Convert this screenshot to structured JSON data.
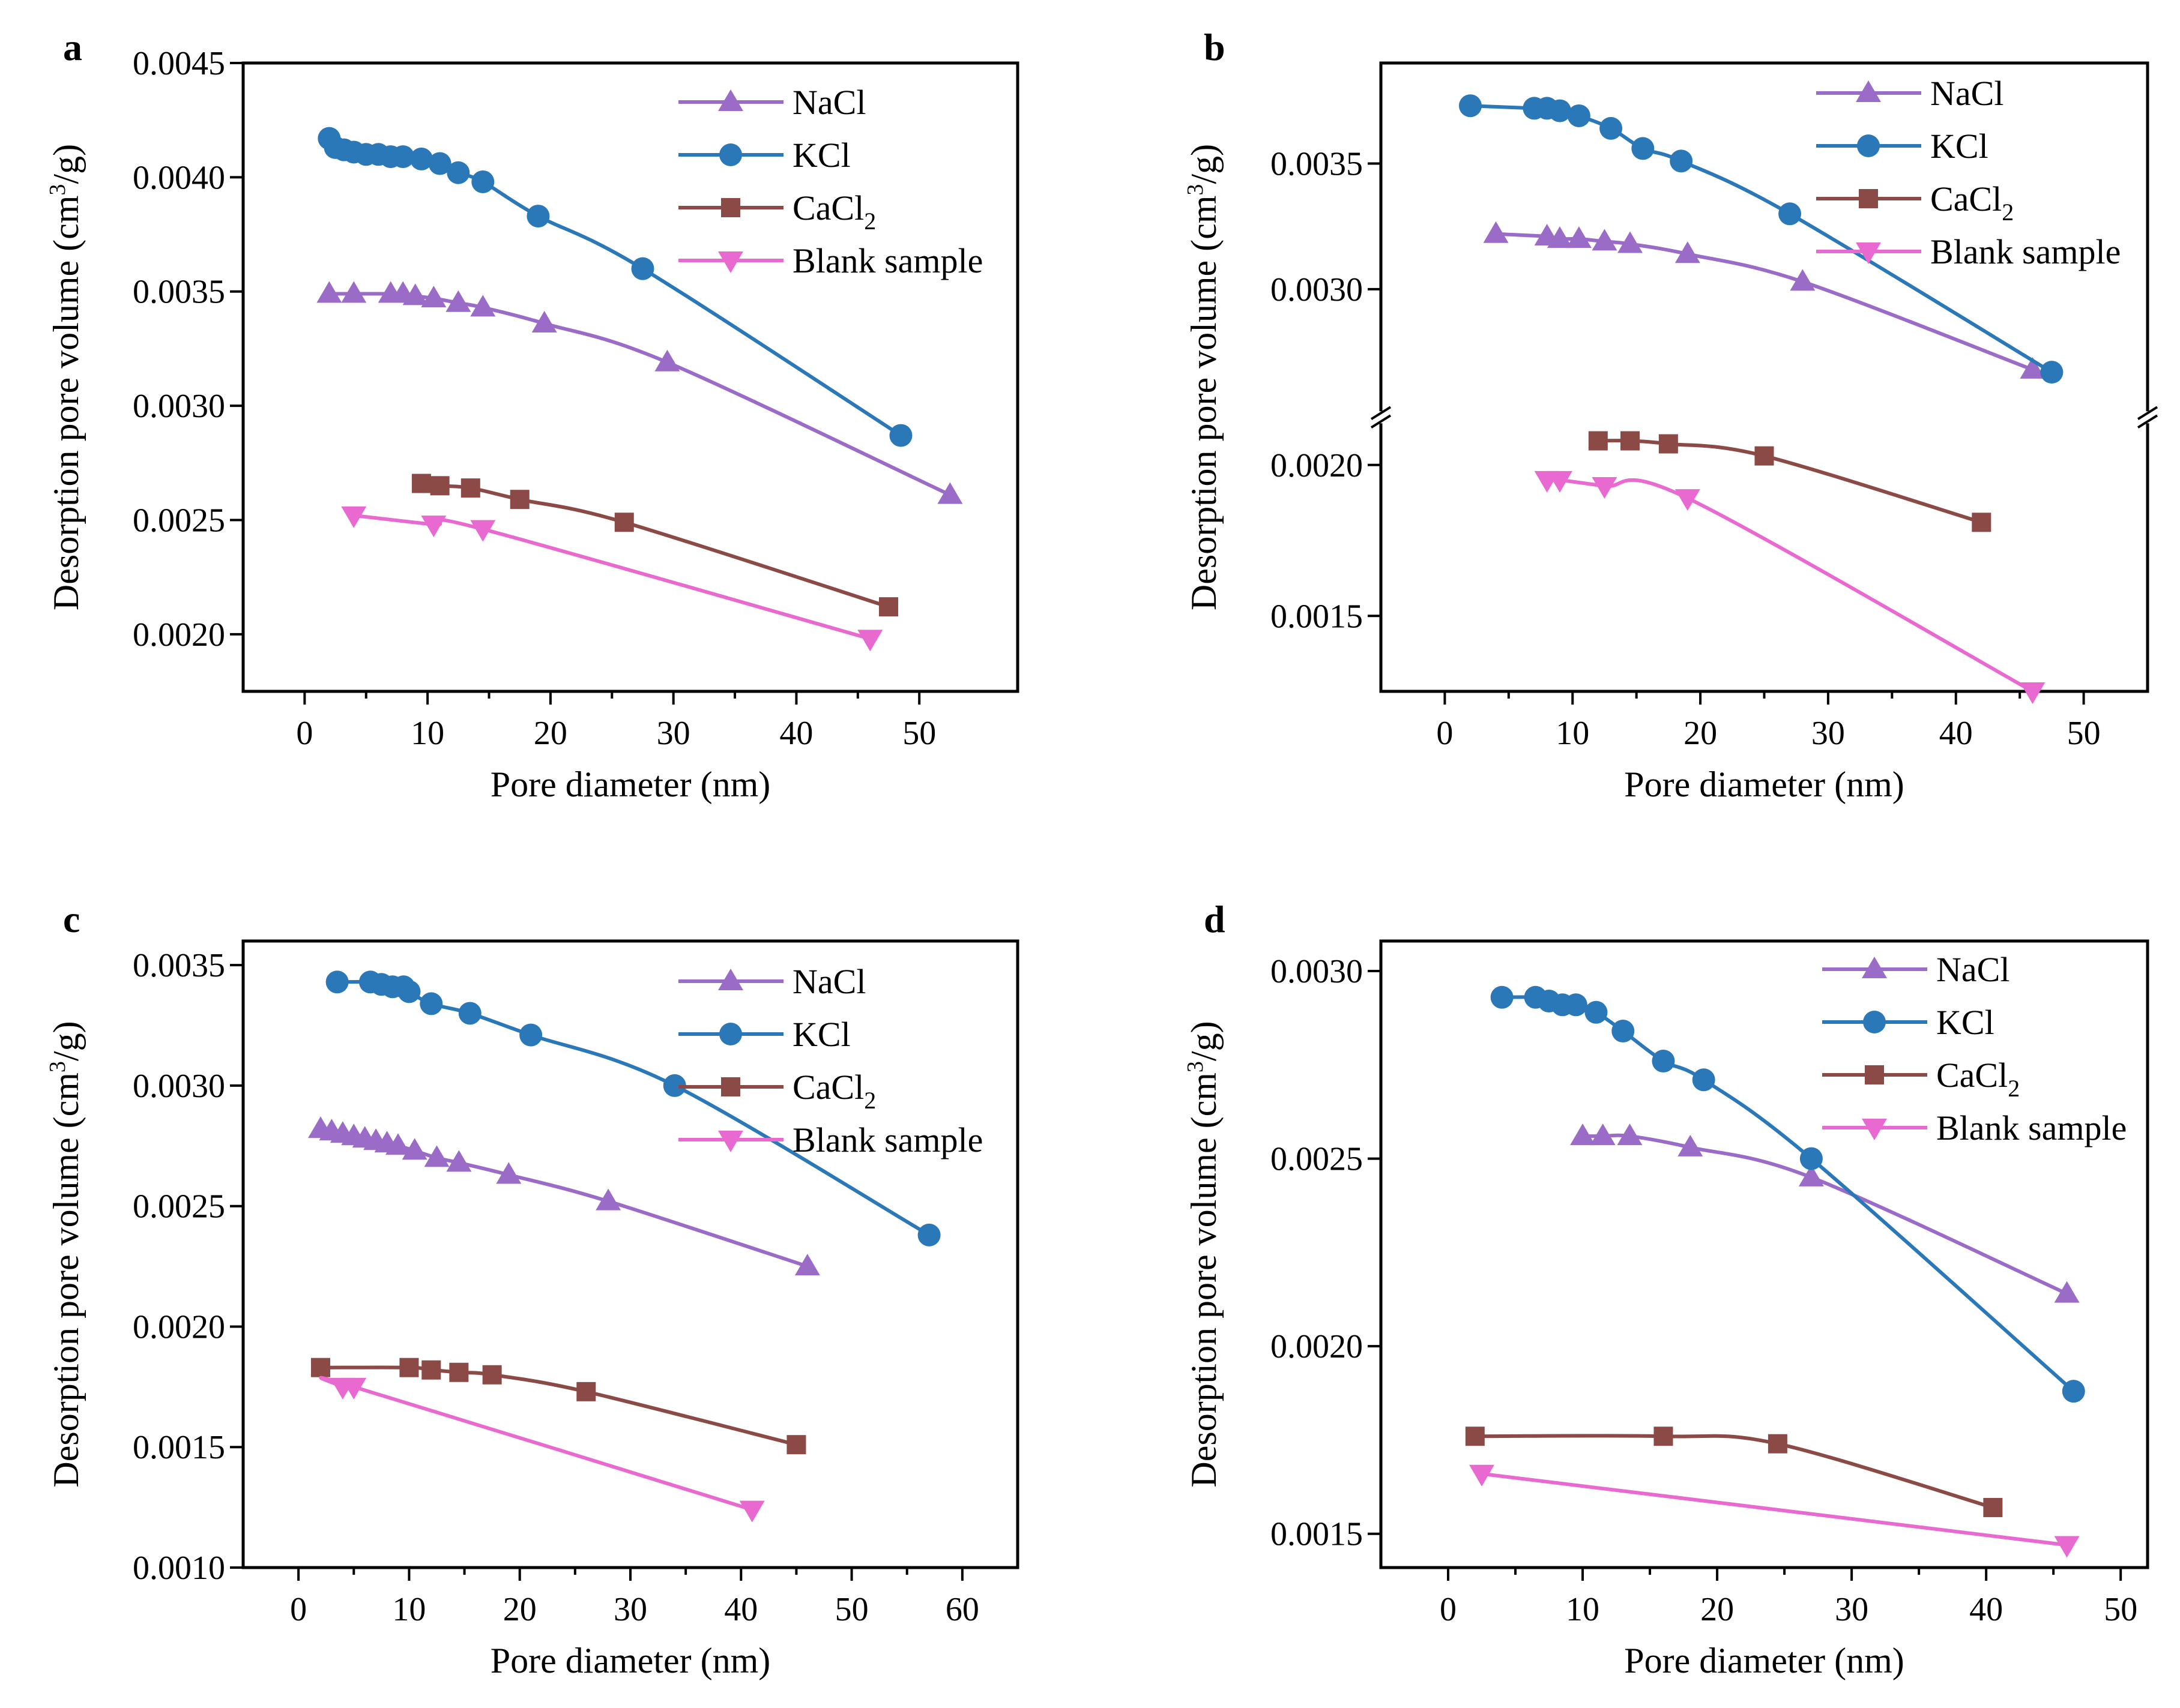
{
  "figure": {
    "legend_labels": {
      "NaCl": "NaCl",
      "KCl": "KCl",
      "CaCl2_base": "CaCl",
      "CaCl2_sub": "2",
      "Blank": "Blank sample"
    },
    "colors": {
      "NaCl": "#9b6bc8",
      "KCl": "#2a78b8",
      "CaCl2": "#8b4a45",
      "Blank": "#e86ad0"
    }
  },
  "chart_data": [
    {
      "panel": "a",
      "type": "line",
      "xlabel": "Pore diameter (nm)",
      "ylabel_main": "Desorption pore volume (cm",
      "ylabel_sup": "3",
      "ylabel_end": "/g)",
      "xlim": [
        -5,
        58
      ],
      "ylim": [
        0.00175,
        0.0045
      ],
      "xticks": [
        0,
        10,
        20,
        30,
        40,
        50
      ],
      "xtick_labels": [
        "0",
        "10",
        "20",
        "30",
        "40",
        "50"
      ],
      "yticks": [
        0.002,
        0.0025,
        0.003,
        0.0035,
        0.004,
        0.0045
      ],
      "ytick_labels": [
        "0.0020",
        "0.0025",
        "0.0030",
        "0.0035",
        "0.0040",
        "0.0045"
      ],
      "series": [
        {
          "name": "NaCl",
          "marker": "triangle-up",
          "x": [
            2,
            4,
            7,
            8,
            9,
            10.5,
            12.5,
            14.5,
            19.5,
            29.5,
            52.5
          ],
          "y": [
            0.00349,
            0.00349,
            0.00349,
            0.00349,
            0.00348,
            0.00347,
            0.00345,
            0.00343,
            0.00336,
            0.00319,
            0.00261
          ]
        },
        {
          "name": "KCl",
          "marker": "circle",
          "x": [
            2,
            2.5,
            3.2,
            4,
            5,
            6,
            7,
            8,
            9.5,
            11,
            12.5,
            14.5,
            19,
            27.5,
            48.5
          ],
          "y": [
            0.00417,
            0.00413,
            0.00412,
            0.00411,
            0.0041,
            0.0041,
            0.00409,
            0.00409,
            0.00408,
            0.00406,
            0.00402,
            0.00398,
            0.00383,
            0.0036,
            0.00287
          ]
        },
        {
          "name": "CaCl2",
          "marker": "square",
          "x": [
            9.5,
            11,
            13.5,
            17.5,
            26,
            47.5
          ],
          "y": [
            0.00266,
            0.00265,
            0.00264,
            0.00259,
            0.00249,
            0.00212
          ]
        },
        {
          "name": "Blank sample",
          "marker": "triangle-down",
          "x": [
            4,
            10.5,
            14.5,
            46
          ],
          "y": [
            0.00252,
            0.00248,
            0.00246,
            0.00198
          ]
        }
      ]
    },
    {
      "panel": "b",
      "type": "line",
      "broken_axis": true,
      "xlabel": "Pore diameter (nm)",
      "ylabel_main": "Desorption pore volume (cm",
      "ylabel_sup": "3",
      "ylabel_end": "/g)",
      "xlim": [
        -5,
        55
      ],
      "ylim_upper": [
        0.0025,
        0.0039
      ],
      "ylim_lower": [
        0.00125,
        0.00215
      ],
      "xticks": [
        0,
        10,
        20,
        30,
        40,
        50
      ],
      "xtick_labels": [
        "0",
        "10",
        "20",
        "30",
        "40",
        "50"
      ],
      "yticks_upper": [
        0.003,
        0.0035
      ],
      "ytick_labels_upper": [
        "0.0030",
        "0.0035"
      ],
      "yticks_lower": [
        0.0015,
        0.002
      ],
      "ytick_labels_lower": [
        "0.0015",
        "0.0020"
      ],
      "series": [
        {
          "name": "NaCl",
          "marker": "triangle-up",
          "x": [
            4,
            8,
            9,
            10.5,
            12.5,
            14.5,
            19,
            28,
            46
          ],
          "y": [
            0.00322,
            0.00321,
            0.0032,
            0.0032,
            0.00319,
            0.00318,
            0.00314,
            0.00303,
            0.00268
          ]
        },
        {
          "name": "KCl",
          "marker": "circle",
          "x": [
            2,
            7,
            8,
            9,
            10.5,
            13,
            15.5,
            18.5,
            27,
            47.5
          ],
          "y": [
            0.00373,
            0.00372,
            0.00372,
            0.00371,
            0.00369,
            0.00364,
            0.00356,
            0.00351,
            0.0033,
            0.00267
          ]
        },
        {
          "name": "CaCl2",
          "marker": "square",
          "x": [
            12,
            14.5,
            17.5,
            25,
            42
          ],
          "y": [
            0.00208,
            0.00208,
            0.00207,
            0.00203,
            0.00181
          ]
        },
        {
          "name": "Blank sample",
          "marker": "triangle-down",
          "x": [
            8,
            9,
            12.5,
            19,
            46
          ],
          "y": [
            0.00195,
            0.00195,
            0.00193,
            0.00189,
            0.00125
          ]
        }
      ]
    },
    {
      "panel": "c",
      "type": "line",
      "xlabel": "Pore diameter (nm)",
      "ylabel_main": "Desorption pore volume (cm",
      "ylabel_sup": "3",
      "ylabel_end": "/g)",
      "xlim": [
        -5,
        65
      ],
      "ylim": [
        0.001,
        0.0036
      ],
      "xticks": [
        0,
        10,
        20,
        30,
        40,
        50,
        60
      ],
      "xtick_labels": [
        "0",
        "10",
        "20",
        "30",
        "40",
        "50",
        "60"
      ],
      "yticks": [
        0.001,
        0.0015,
        0.002,
        0.0025,
        0.003,
        0.0035
      ],
      "ytick_labels": [
        "0.0010",
        "0.0015",
        "0.0020",
        "0.0025",
        "0.0030",
        "0.0035"
      ],
      "series": [
        {
          "name": "NaCl",
          "marker": "triangle-up",
          "x": [
            2,
            3,
            4,
            5,
            6,
            7,
            8,
            9,
            10.5,
            12.5,
            14.5,
            19,
            28,
            46
          ],
          "y": [
            0.00282,
            0.00281,
            0.0028,
            0.00279,
            0.00278,
            0.00277,
            0.00276,
            0.00275,
            0.00273,
            0.0027,
            0.00268,
            0.00263,
            0.00252,
            0.00225
          ]
        },
        {
          "name": "KCl",
          "marker": "circle",
          "x": [
            3.5,
            6.5,
            7.5,
            8.5,
            9.5,
            10,
            12,
            15.5,
            21,
            34,
            57
          ],
          "y": [
            0.00343,
            0.00343,
            0.00342,
            0.00341,
            0.00341,
            0.00339,
            0.00334,
            0.0033,
            0.00321,
            0.003,
            0.00238
          ]
        },
        {
          "name": "CaCl2",
          "marker": "square",
          "x": [
            2,
            10,
            12,
            14.5,
            17.5,
            26,
            45
          ],
          "y": [
            0.00183,
            0.00183,
            0.00182,
            0.00181,
            0.0018,
            0.00173,
            0.00151
          ]
        },
        {
          "name": "Blank sample",
          "marker": "triangle-down",
          "x": [
            4,
            5,
            41
          ],
          "y": [
            0.00175,
            0.00175,
            0.00124
          ]
        }
      ]
    },
    {
      "panel": "d",
      "type": "line",
      "xlabel": "Pore diameter (nm)",
      "ylabel_main": "Desorption pore volume (cm",
      "ylabel_sup": "3",
      "ylabel_end": "/g)",
      "xlim": [
        -5,
        52
      ],
      "ylim": [
        0.00141,
        0.00308
      ],
      "xticks": [
        0,
        10,
        20,
        30,
        40,
        50
      ],
      "xtick_labels": [
        "0",
        "10",
        "20",
        "30",
        "40",
        "50"
      ],
      "yticks": [
        0.0015,
        0.002,
        0.0025,
        0.003
      ],
      "ytick_labels": [
        "0.0015",
        "0.0020",
        "0.0025",
        "0.0030"
      ],
      "series": [
        {
          "name": "NaCl",
          "marker": "triangle-up",
          "x": [
            10,
            11.5,
            13.5,
            18,
            27,
            46
          ],
          "y": [
            0.00256,
            0.00256,
            0.00256,
            0.00253,
            0.00245,
            0.00214
          ]
        },
        {
          "name": "KCl",
          "marker": "circle",
          "x": [
            4,
            6.5,
            7.5,
            8.5,
            9.5,
            11,
            13,
            16,
            19,
            27,
            46.5
          ],
          "y": [
            0.00293,
            0.00293,
            0.00292,
            0.00291,
            0.00291,
            0.00289,
            0.00284,
            0.00276,
            0.00271,
            0.0025,
            0.00188
          ]
        },
        {
          "name": "CaCl2",
          "marker": "square",
          "x": [
            2,
            16,
            24.5,
            40.5
          ],
          "y": [
            0.00176,
            0.00176,
            0.00174,
            0.00157
          ]
        },
        {
          "name": "Blank sample",
          "marker": "triangle-down",
          "x": [
            2.5,
            46
          ],
          "y": [
            0.00166,
            0.00147
          ]
        }
      ]
    }
  ]
}
